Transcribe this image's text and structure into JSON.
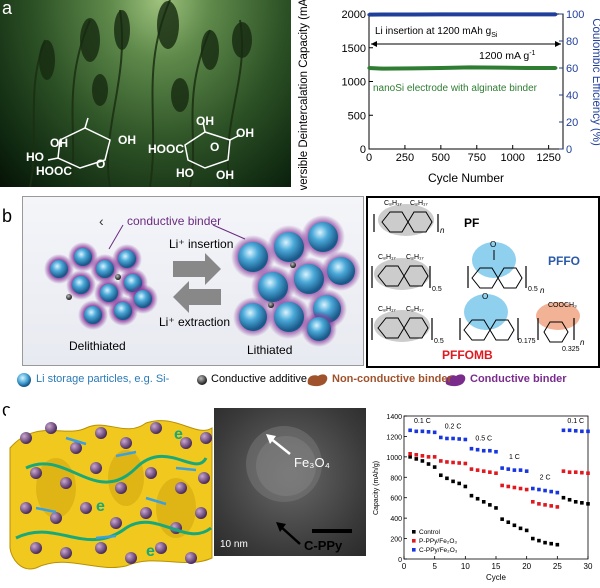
{
  "panel_labels": {
    "a": "a",
    "b": "b",
    "c": "c"
  },
  "panel_a": {
    "photo_labels": {
      "oh1": "OH",
      "ho1": "HO",
      "hooc1": "HOOC",
      "oh2": "OH",
      "ring_o1": "O",
      "hooc2": "HOOC",
      "oh3": "OH",
      "o2": "O",
      "oh4": "OH",
      "ho2": "HO",
      "oh5": "OH"
    }
  },
  "chart_a": {
    "type": "line",
    "ylabel_left": "Reversible Deintercalation Capacity (mAh g⁻¹Si)",
    "ylabel_right": "Coulombic Efficiency (%)",
    "xlabel": "Cycle Number",
    "xticks": [
      "0",
      "250",
      "500",
      "750",
      "1000",
      "1250"
    ],
    "yticks_left": [
      "0",
      "500",
      "1000",
      "1500",
      "2000"
    ],
    "yticks_right": [
      "0",
      "20",
      "40",
      "60",
      "80",
      "100"
    ],
    "xlim": [
      0,
      1350
    ],
    "ylim_left": [
      0,
      2000
    ],
    "ylim_right": [
      0,
      100
    ],
    "annotation_insertion": "Li insertion at 1200 mAh g",
    "annotation_insertion_sub": "Si",
    "annotation_rate": "1200 mA g",
    "annotation_rate_sup": "-1",
    "annotation_electrode": "nanoSi electrode with alginate binder",
    "series": [
      {
        "name": "Capacity",
        "color": "#2e7d32",
        "x": [
          0,
          100,
          300,
          500,
          700,
          900,
          1100,
          1300
        ],
        "y": [
          1200,
          1190,
          1195,
          1200,
          1210,
          1205,
          1200,
          1200
        ]
      },
      {
        "name": "Coulombic Efficiency",
        "color": "#1f3f9a",
        "x": [
          0,
          100,
          300,
          500,
          700,
          900,
          1100,
          1300
        ],
        "y": [
          99.5,
          99.6,
          99.6,
          99.7,
          99.7,
          99.7,
          99.7,
          99.7
        ]
      }
    ]
  },
  "panel_b": {
    "conductive_binder": "conductive binder",
    "li_insertion": "Li⁺ insertion",
    "li_extraction": "Li⁺ extraction",
    "delithiated": "Delithiated",
    "lithiated": "Lithiated",
    "legend_storage": "Li storage particles, e.g. Si-",
    "legend_additive": "Conductive additive",
    "legend_nonconductive": "Non-conductive binder",
    "legend_conductive": "Conductive binder",
    "struct_pf": "PF",
    "struct_pffo": "PFFO",
    "struct_pffomb": "PFFOMB",
    "sub_c8h17": "C₈H₁₇",
    "sub_n": "n",
    "sub_05": "0.5",
    "sub_0175": "0.175",
    "sub_0325": "0.325",
    "sub_cooch3": "COOCH₃",
    "sub_o": "O",
    "mark": "‹"
  },
  "panel_c": {
    "tem_fe3o4": "Fe₃O₄",
    "tem_cppy": "C-PPy",
    "tem_scale": "10 nm",
    "struct_e1": "e",
    "struct_e2": "e",
    "struct_e3": "e"
  },
  "chart_c": {
    "type": "scatter",
    "ylabel": "Capacity (mAh/g)",
    "xlabel": "Cycle",
    "xticks": [
      "0",
      "5",
      "10",
      "15",
      "20",
      "25",
      "30"
    ],
    "yticks": [
      "0",
      "200",
      "400",
      "600",
      "800",
      "1000",
      "1200",
      "1400"
    ],
    "xlim": [
      0,
      30
    ],
    "ylim": [
      0,
      1400
    ],
    "rate_labels": [
      "0.1 C",
      "0.2 C",
      "0.5 C",
      "1 C",
      "2 C",
      "0.1 C"
    ],
    "legend": [
      "Control",
      "P-PPy/Fe₂O₃",
      "C-PPy/Fe₂O₃"
    ],
    "series": [
      {
        "name": "Control",
        "color": "#000000",
        "x": [
          1,
          2,
          3,
          4,
          5,
          6,
          7,
          8,
          9,
          10,
          11,
          12,
          13,
          14,
          15,
          16,
          17,
          18,
          19,
          20,
          21,
          22,
          23,
          24,
          25,
          26,
          27,
          28,
          29,
          30
        ],
        "y": [
          1000,
          980,
          960,
          930,
          900,
          820,
          790,
          760,
          740,
          710,
          620,
          590,
          560,
          530,
          500,
          390,
          360,
          330,
          300,
          280,
          200,
          180,
          160,
          150,
          140,
          600,
          580,
          560,
          550,
          540
        ]
      },
      {
        "name": "P-PPy/Fe₂O₃",
        "color": "#e0191f",
        "x": [
          1,
          2,
          3,
          4,
          5,
          6,
          7,
          8,
          9,
          10,
          11,
          12,
          13,
          14,
          15,
          16,
          17,
          18,
          19,
          20,
          21,
          22,
          23,
          24,
          25,
          26,
          27,
          28,
          29,
          30
        ],
        "y": [
          1030,
          1020,
          1010,
          1000,
          1000,
          960,
          950,
          945,
          940,
          935,
          880,
          870,
          860,
          850,
          840,
          720,
          710,
          700,
          690,
          680,
          560,
          540,
          530,
          520,
          510,
          860,
          850,
          850,
          845,
          840
        ]
      },
      {
        "name": "C-PPy/Fe₂O₃",
        "color": "#1736e0",
        "x": [
          1,
          2,
          3,
          4,
          5,
          6,
          7,
          8,
          9,
          10,
          11,
          12,
          13,
          14,
          15,
          16,
          17,
          18,
          19,
          20,
          21,
          22,
          23,
          24,
          25,
          26,
          27,
          28,
          29,
          30
        ],
        "y": [
          1260,
          1250,
          1250,
          1245,
          1240,
          1190,
          1180,
          1180,
          1175,
          1170,
          1080,
          1070,
          1060,
          1060,
          1050,
          890,
          880,
          870,
          870,
          860,
          690,
          680,
          670,
          660,
          650,
          1260,
          1260,
          1255,
          1250,
          1250
        ]
      }
    ]
  }
}
